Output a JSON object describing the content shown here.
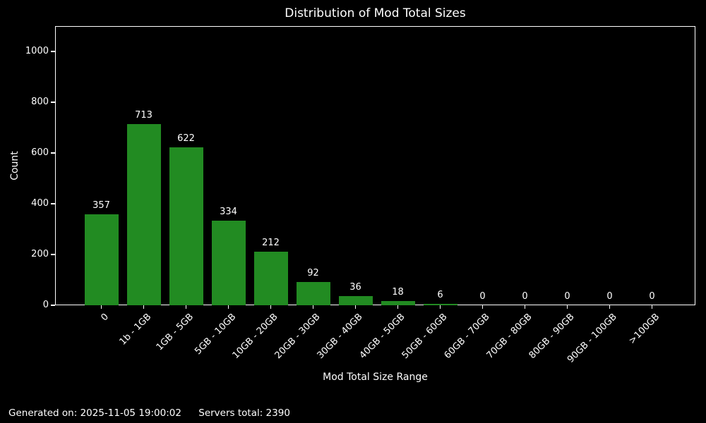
{
  "title": "Distribution of Mod Total Sizes",
  "footer": {
    "generated": "Generated on: 2025-11-05 19:00:02",
    "servers_total": "Servers total: 2390"
  },
  "chart_data": {
    "type": "bar",
    "title": "Distribution of Mod Total Sizes",
    "xlabel": "Mod Total Size Range",
    "ylabel": "Count",
    "categories": [
      "0",
      "1b - 1GB",
      "1GB - 5GB",
      "5GB - 10GB",
      "10GB - 20GB",
      "20GB - 30GB",
      "30GB - 40GB",
      "40GB - 50GB",
      "50GB - 60GB",
      "60GB - 70GB",
      "70GB - 80GB",
      "80GB - 90GB",
      "90GB - 100GB",
      ">100GB"
    ],
    "values": [
      357,
      713,
      622,
      334,
      212,
      92,
      36,
      18,
      6,
      0,
      0,
      0,
      0,
      0
    ],
    "bar_labels": true,
    "yticks": [
      0,
      200,
      400,
      600,
      800,
      1000
    ],
    "ylim": [
      0,
      1100
    ],
    "xtick_rotation": 45,
    "grid": false,
    "legend": null,
    "bar_color": "#228B22",
    "background_color": "#000000",
    "text_color": "#ffffff"
  }
}
